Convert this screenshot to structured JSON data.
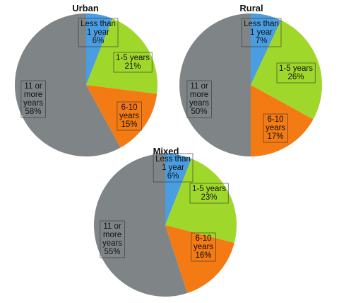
{
  "chart_data": [
    {
      "type": "pie",
      "title": "Urban",
      "slices": [
        {
          "label": [
            "Less than",
            "1 year",
            "6%"
          ],
          "value": 6,
          "color": "#4a9de0"
        },
        {
          "label": [
            "1-5 years",
            "21%"
          ],
          "value": 21,
          "color": "#9fd82a"
        },
        {
          "label": [
            "6-10",
            "years",
            "15%"
          ],
          "value": 15,
          "color": "#f47a13"
        },
        {
          "label": [
            "11 or",
            "more",
            "years",
            "58%"
          ],
          "value": 58,
          "color": "#7f8587"
        }
      ]
    },
    {
      "type": "pie",
      "title": "Rural",
      "slices": [
        {
          "label": [
            "Less than",
            "1 year",
            "7%"
          ],
          "value": 7,
          "color": "#4a9de0"
        },
        {
          "label": [
            "1-5 years",
            "26%"
          ],
          "value": 26,
          "color": "#9fd82a"
        },
        {
          "label": [
            "6-10",
            "years",
            "17%"
          ],
          "value": 17,
          "color": "#f47a13"
        },
        {
          "label": [
            "11 or",
            "more",
            "years",
            "50%"
          ],
          "value": 50,
          "color": "#7f8587"
        }
      ]
    },
    {
      "type": "pie",
      "title": "Mixed",
      "slices": [
        {
          "label": [
            "Less than",
            "1 year",
            "6%"
          ],
          "value": 6,
          "color": "#4a9de0"
        },
        {
          "label": [
            "1-5 years",
            "23%"
          ],
          "value": 23,
          "color": "#9fd82a"
        },
        {
          "label": [
            "6-10",
            "years",
            "16%"
          ],
          "value": 16,
          "color": "#f47a13"
        },
        {
          "label": [
            "11 or",
            "more",
            "years",
            "55%"
          ],
          "value": 55,
          "color": "#7f8587"
        }
      ]
    }
  ]
}
